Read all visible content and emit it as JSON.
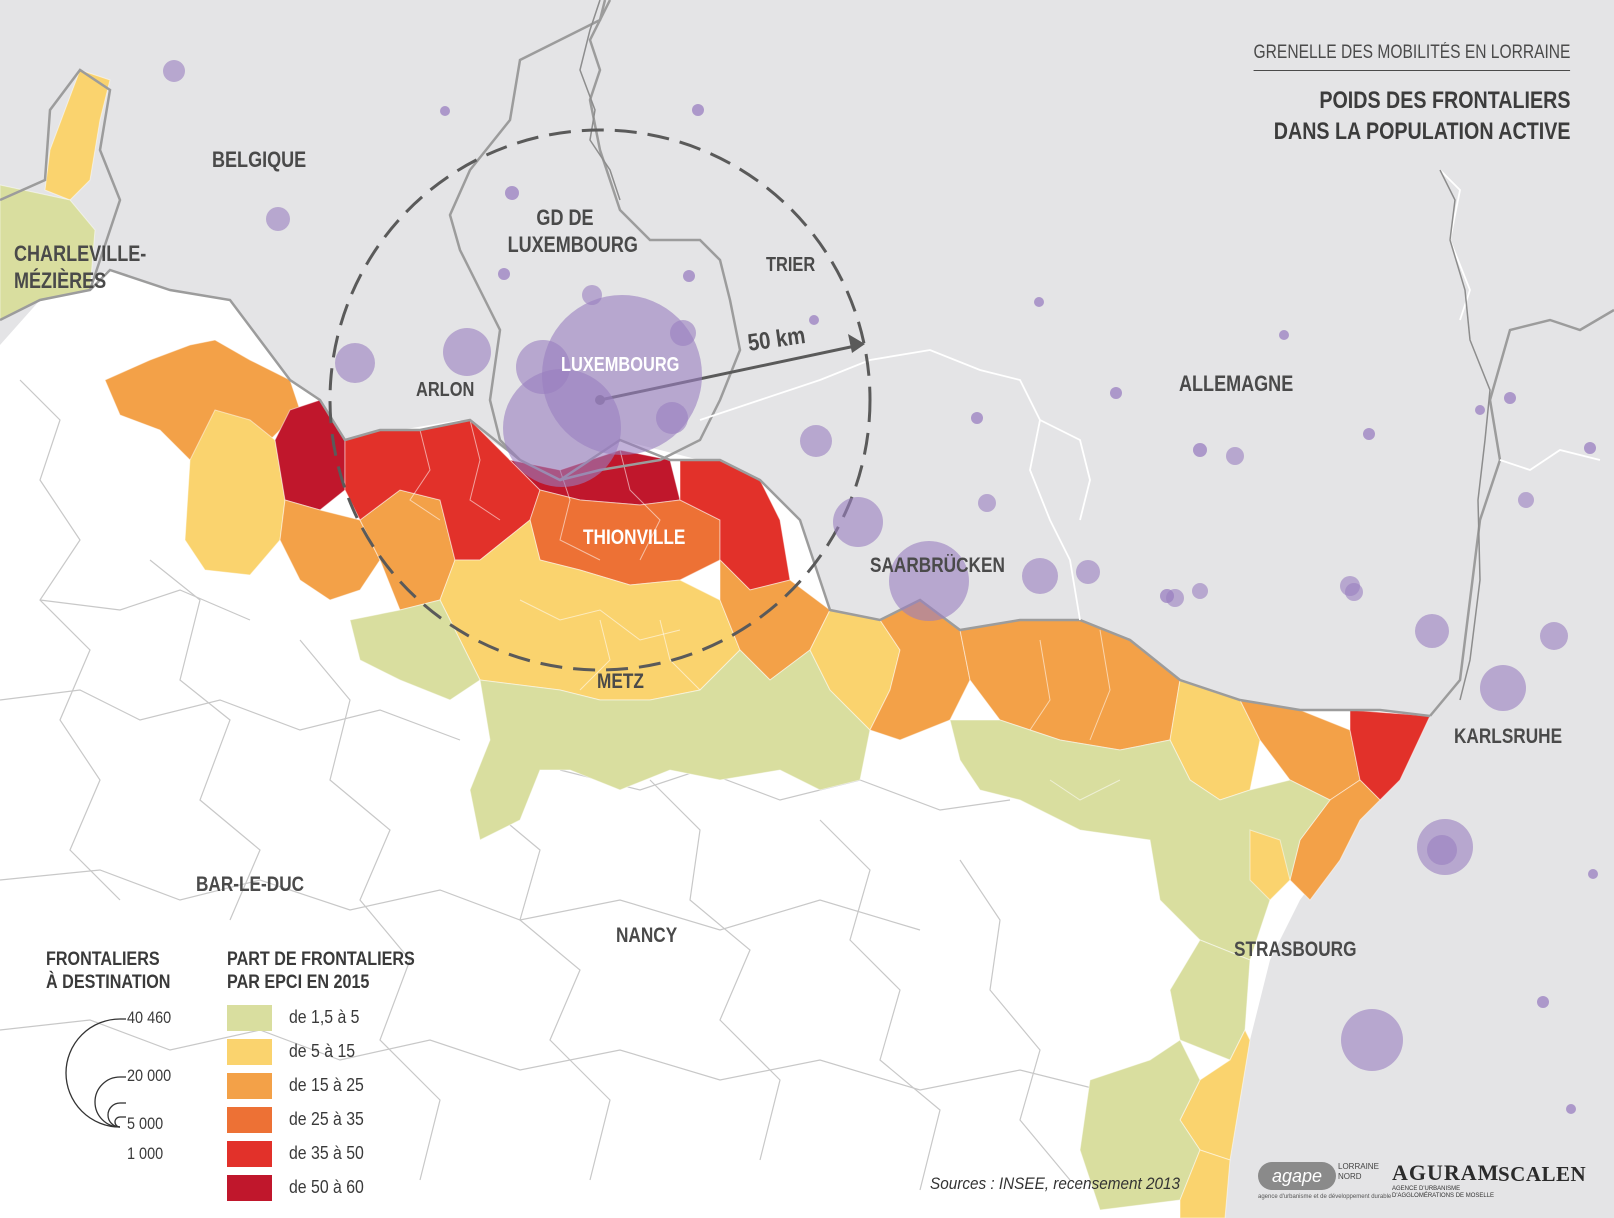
{
  "header": {
    "subtitle": "GRENELLE DES MOBILITÉS EN LORRAINE",
    "title": "POIDS DES FRONTALIERS\nDANS LA POPULATION ACTIVE"
  },
  "places": {
    "belgique": "BELGIQUE",
    "luxembourg_country": "GD DE\nLUXEMBOURG",
    "charleville": "CHARLEVILLE-\nMÉZIÈRES",
    "trier": "TRIER",
    "arlon": "ARLON",
    "luxembourg_city": "LUXEMBOURG",
    "allemagne": "ALLEMAGNE",
    "thionville": "THIONVILLE",
    "saarbrucken": "SAARBRÜCKEN",
    "metz": "METZ",
    "karlsruhe": "KARLSRUHE",
    "bar_le_duc": "BAR-LE-DUC",
    "nancy": "NANCY",
    "strasbourg": "STRASBOURG"
  },
  "radius_label": "50 km",
  "legend_size": {
    "title": "FRONTALIERS\nÀ DESTINATION",
    "values": [
      "40 460",
      "20 000",
      "5 000",
      "1 000"
    ]
  },
  "legend_share": {
    "title": "PART DE FRONTALIERS\nPAR EPCI EN 2015",
    "classes": [
      {
        "label": "de 1,5 à 5",
        "color": "#d9de9f"
      },
      {
        "label": "de 5 à 15",
        "color": "#fad36e"
      },
      {
        "label": "de 15 à 25",
        "color": "#f3a148"
      },
      {
        "label": "de 25 à 35",
        "color": "#ed7135"
      },
      {
        "label": "de 35 à 50",
        "color": "#e2312a"
      },
      {
        "label": "de 50 à 60",
        "color": "#c0172c"
      }
    ]
  },
  "sources": "Sources : INSEE, recensement 2013",
  "logos": {
    "agape": "agape",
    "agape_side": "LORRAINE\nNORD",
    "agape_tag": "agence d'urbanisme et de développement durable",
    "aguram": "AGURAM",
    "aguram_sub": "AGENCE D'URBANISME\nD'AGGLOMÉRATIONS DE MOSELLE",
    "scalen": "SCALEN"
  },
  "colors": {
    "foreign_background": "#e4e4e6",
    "france_background": "#ffffff",
    "bubble": "#9a7fc0",
    "border": "#9c9c9c"
  }
}
